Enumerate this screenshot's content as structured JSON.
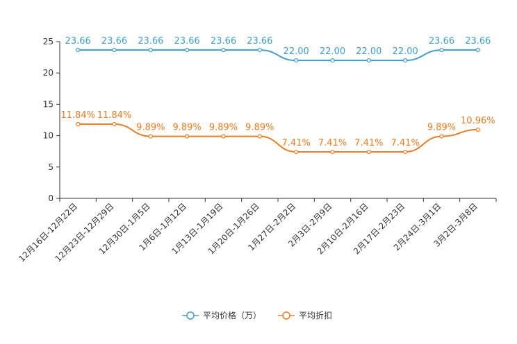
{
  "chart_data": {
    "type": "line",
    "categories": [
      "12月16日-12月22日",
      "12月23日-12月29日",
      "12月30日-1月5日",
      "1月6日-1月12日",
      "1月13日-1月19日",
      "1月20日-1月26日",
      "1月27日-2月2日",
      "2月3日-2月9日",
      "2月10日-2月16日",
      "2月17日-2月23日",
      "2月24日-3月1日",
      "3月2日-3月8日"
    ],
    "series": [
      {
        "name": "平均价格（万）",
        "color": "#3d9fce",
        "values": [
          23.66,
          23.66,
          23.66,
          23.66,
          23.66,
          23.66,
          22.0,
          22.0,
          22.0,
          22.0,
          23.66,
          23.66
        ],
        "labels": [
          "23.66",
          "23.66",
          "23.66",
          "23.66",
          "23.66",
          "23.66",
          "22.00",
          "22.00",
          "22.00",
          "22.00",
          "23.66",
          "23.66"
        ]
      },
      {
        "name": "平均折扣",
        "color": "#f07b1d",
        "values": [
          11.84,
          11.84,
          9.89,
          9.89,
          9.89,
          9.89,
          7.41,
          7.41,
          7.41,
          7.41,
          9.89,
          10.96
        ],
        "labels": [
          "11.84%",
          "11.84%",
          "9.89%",
          "9.89%",
          "9.89%",
          "9.89%",
          "7.41%",
          "7.41%",
          "7.41%",
          "7.41%",
          "9.89%",
          "10.96%"
        ]
      }
    ],
    "ylim": [
      0,
      25
    ],
    "yticks": [
      0,
      5,
      10,
      15,
      20,
      25
    ],
    "grid": false,
    "legend": "bottom-center",
    "title": "",
    "xlabel": "",
    "ylabel": ""
  }
}
